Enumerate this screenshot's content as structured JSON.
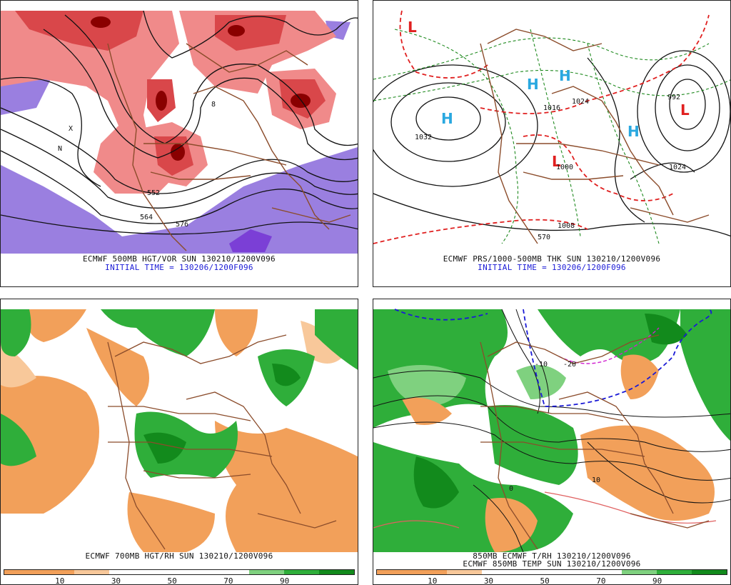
{
  "panels": {
    "top_left": {
      "caption_line1": "ECMWF 500MB HGT/VOR SUN 130210/1200V096",
      "caption_line2": "INITIAL TIME = 130206/1200F096",
      "contour_labels": [
        "564",
        "576",
        "552",
        "8",
        "N",
        "X"
      ]
    },
    "top_right": {
      "caption_line1": "ECMWF PRS/1000-500MB THK SUN 130210/1200V096",
      "caption_line2": "INITIAL TIME = 130206/1200F096",
      "pressure_centers": [
        {
          "type": "H",
          "value": "1032"
        },
        {
          "type": "H",
          "value": "1024"
        },
        {
          "type": "H",
          "value": "1016"
        },
        {
          "type": "H",
          "value": ""
        },
        {
          "type": "L",
          "value": "1000"
        },
        {
          "type": "L",
          "value": "992"
        },
        {
          "type": "L",
          "value": ""
        }
      ],
      "contour_labels": [
        "1032",
        "1024",
        "1016",
        "1008",
        "1000",
        "992",
        "570",
        "1024"
      ]
    },
    "bottom_left": {
      "caption_line1": "ECMWF 700MB HGT/RH SUN 130210/1200V096",
      "colorbar_ticks": [
        "10",
        "30",
        "50",
        "70",
        "90"
      ]
    },
    "bottom_right": {
      "caption_line1": "850MB ECMWF T/RH 130210/1200V096",
      "caption_line2": "ECMWF 850MB TEMP SUN 130210/1200V096",
      "colorbar_ticks": [
        "10",
        "30",
        "50",
        "70",
        "90"
      ],
      "contour_labels": [
        "0",
        "-10",
        "10",
        "-20"
      ]
    }
  },
  "colors": {
    "orange": "#f2a05a",
    "orange_light": "#f8c89a",
    "green_light": "#7fd17f",
    "green": "#2fae3a",
    "green_dark": "#128a1c",
    "vort_red": "#d9474a",
    "vort_dark": "#8a0000",
    "vort_purple": "#9370db",
    "coast_brown": "#8b4c2b",
    "high_blue": "#29a8e0",
    "low_red": "#e02020"
  }
}
